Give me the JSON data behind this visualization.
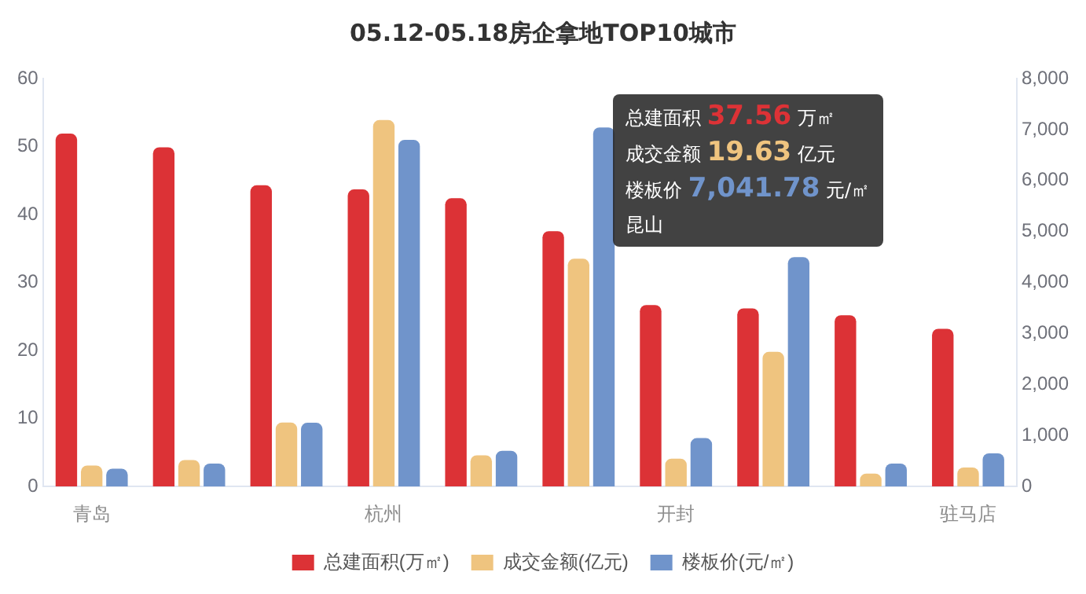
{
  "chart_data": {
    "type": "bar",
    "title": "05.12-05.18房企拿地TOP10城市",
    "categories": [
      "青岛",
      null,
      null,
      "杭州",
      null,
      null,
      "开封",
      null,
      null,
      "驻马店"
    ],
    "series": [
      {
        "name": "总建面积(万㎡)",
        "color": "#dc3236",
        "values": [
          51.9,
          49.9,
          44.3,
          43.7,
          42.4,
          37.56,
          26.7,
          26.2,
          25.2,
          23.2
        ]
      },
      {
        "name": "成交金额(亿元)",
        "color": "#efc47f",
        "values": [
          3.1,
          3.9,
          9.4,
          53.9,
          4.6,
          33.5,
          4.1,
          19.8,
          1.9,
          2.8
        ]
      },
      {
        "name": "楼板价(元/㎡)",
        "color": "#7094cb",
        "axis": "y2",
        "values": [
          350,
          450,
          1250,
          6800,
          700,
          7041.78,
          950,
          4500,
          450,
          650
        ]
      }
    ],
    "ylim": [
      0,
      60
    ],
    "yticks": [
      0,
      10,
      20,
      30,
      40,
      50,
      60
    ],
    "y2lim": [
      0,
      8000
    ],
    "y2ticks": [
      {
        "value": 0,
        "label": "0"
      },
      {
        "value": 1000,
        "label": "1,000"
      },
      {
        "value": 2000,
        "label": "2,000"
      },
      {
        "value": 3000,
        "label": "3,000"
      },
      {
        "value": 4000,
        "label": "4,000"
      },
      {
        "value": 5000,
        "label": "5,000"
      },
      {
        "value": 6000,
        "label": "6,000"
      },
      {
        "value": 7000,
        "label": "7,000"
      },
      {
        "value": 8000,
        "label": "8,000"
      }
    ],
    "grid": false,
    "legend": "bottom",
    "annotations": [
      "总建面积 37.56 万㎡",
      "成交金额 19.63 亿元",
      "楼板价 7,041.78 元/㎡",
      "昆山"
    ]
  }
}
